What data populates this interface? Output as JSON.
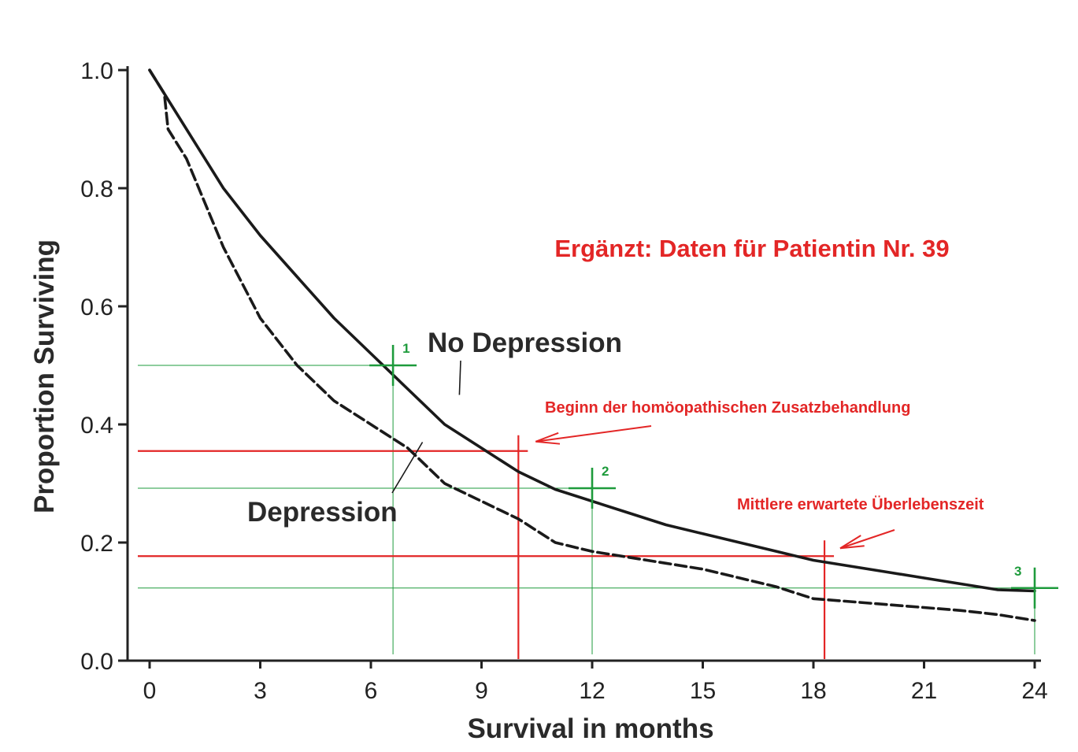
{
  "chart_data": {
    "type": "line",
    "xlabel": "Survival in months",
    "ylabel": "Proportion Surviving",
    "xlim": [
      0,
      24
    ],
    "ylim": [
      0,
      1
    ],
    "x_ticks": [
      "0",
      "3",
      "6",
      "9",
      "12",
      "15",
      "18",
      "21",
      "24"
    ],
    "y_ticks": [
      "0.0",
      "0.2",
      "0.4",
      "0.6",
      "0.8",
      "1.0"
    ],
    "grid": false,
    "series": [
      {
        "name": "No Depression",
        "style": "solid",
        "color": "#1a1a1a",
        "x": [
          0,
          0.5,
          1,
          2,
          3,
          4,
          5,
          6,
          7,
          8,
          9,
          10,
          11,
          12,
          13,
          14,
          15,
          16,
          17,
          18,
          19,
          20,
          21,
          22,
          23,
          24
        ],
        "y": [
          1.0,
          0.95,
          0.9,
          0.8,
          0.72,
          0.65,
          0.58,
          0.52,
          0.46,
          0.4,
          0.36,
          0.32,
          0.29,
          0.27,
          0.25,
          0.23,
          0.215,
          0.2,
          0.185,
          0.17,
          0.16,
          0.15,
          0.14,
          0.13,
          0.12,
          0.118
        ]
      },
      {
        "name": "Depression",
        "style": "dashed",
        "color": "#1a1a1a",
        "x": [
          0,
          0.4,
          0.5,
          1,
          2,
          3,
          4,
          5,
          6,
          7,
          8,
          9,
          10,
          11,
          12,
          13,
          14,
          15,
          16,
          17,
          18,
          19,
          20,
          21,
          22,
          23,
          24
        ],
        "y": [
          1.0,
          0.96,
          0.9,
          0.85,
          0.7,
          0.58,
          0.5,
          0.44,
          0.4,
          0.36,
          0.3,
          0.27,
          0.24,
          0.2,
          0.185,
          0.175,
          0.165,
          0.155,
          0.14,
          0.125,
          0.105,
          0.1,
          0.095,
          0.09,
          0.085,
          0.078,
          0.068
        ]
      }
    ],
    "series_labels": [
      {
        "text": "No Depression",
        "pointer_from": [
          8.4,
          0.45
        ]
      },
      {
        "text": "Depression",
        "pointer_from": [
          7.4,
          0.37
        ]
      }
    ],
    "annotations": {
      "title_note": "Ergänzt: Daten für Patientin Nr. 39",
      "red_lines": [
        {
          "x": 10.0,
          "y": 0.355,
          "label": "Beginn der homöopathischen Zusatzbehandlung"
        },
        {
          "x": 18.3,
          "y": 0.177,
          "label": "Mittlere erwartete Überlebenszeit"
        }
      ],
      "green_marks": [
        {
          "label": "1",
          "x": 6.6,
          "y": 0.5
        },
        {
          "label": "2",
          "x": 12.0,
          "y": 0.292
        },
        {
          "label": "3",
          "x": 24.0,
          "y": 0.123
        }
      ]
    },
    "colors": {
      "red": "#e32626",
      "green": "#1e9b3c",
      "line": "#1a1a1a"
    }
  }
}
